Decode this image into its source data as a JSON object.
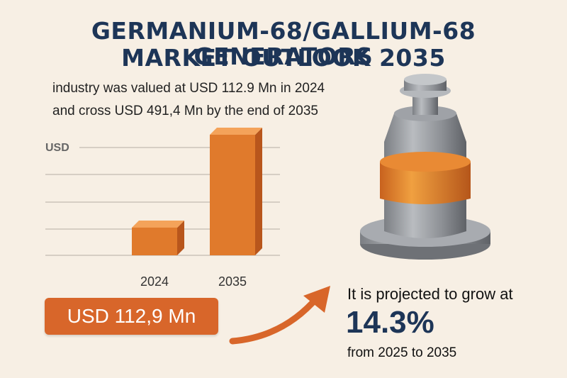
{
  "title_line1": "GERMANIUM-68/GALLIUM-68 GENERATORS",
  "title_line2": "MARKET OUTLOOK 2035",
  "subtitle_line1": "industry was valued at USD 112.9 Mn in 2024",
  "subtitle_line2": "and cross USD 491,4 Mn by the end of 2035",
  "value_pill": "USD 112,9 Mn",
  "growth": {
    "lead": "It is projected to grow at",
    "rate": "14.3%",
    "period": "from 2025 to 2035"
  },
  "colors": {
    "bar": "#e07a2c",
    "title": "#1d3557",
    "pill": "#d8662a",
    "arrow": "#d8662a"
  },
  "icons": [
    "curved-arrow-icon",
    "generator-illustration"
  ],
  "chart_data": {
    "type": "bar",
    "categories": [
      "2024",
      "2035"
    ],
    "values": [
      112.9,
      491.4
    ],
    "ylabel": "USD",
    "grid": true
  }
}
